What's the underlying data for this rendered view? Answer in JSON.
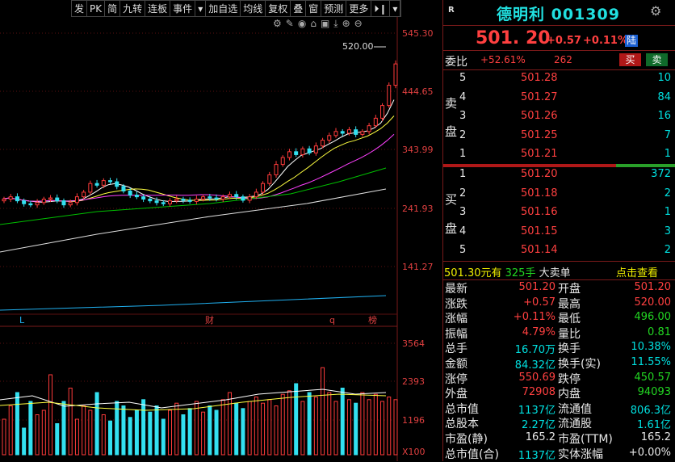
{
  "toolbar": {
    "items": [
      "发",
      "PK",
      "简",
      "九转",
      "连板",
      "事件",
      "▾",
      "加自选",
      "均线",
      "复权",
      "叠",
      "窗",
      "预测",
      "更多",
      "⏵❙",
      "▾"
    ]
  },
  "price_axis": [
    "545.30",
    "444.65",
    "343.99",
    "241.93",
    "141.27"
  ],
  "vol_axis": [
    "3564",
    "2393",
    "1196",
    "X100"
  ],
  "chart_labels": {
    "peak": "520.00",
    "marker_l": "L",
    "marker_cai": "财",
    "marker_q": "q",
    "marker_bang": "榜"
  },
  "stock": {
    "logo": "R",
    "name": "德明利",
    "code": "001309",
    "price": "501. 20",
    "change": "+0.57",
    "pct": "+0.11%",
    "exchange": "陆"
  },
  "weibi": {
    "label": "委比",
    "pct": "+52.61%",
    "diff": "262",
    "buy_btn": "买",
    "sell_btn": "卖"
  },
  "sell_label": [
    "卖",
    "盘"
  ],
  "buy_label": [
    "买",
    "盘"
  ],
  "asks": [
    {
      "lvl": "5",
      "price": "501.28",
      "vol": "10"
    },
    {
      "lvl": "4",
      "price": "501.27",
      "vol": "84"
    },
    {
      "lvl": "3",
      "price": "501.26",
      "vol": "16"
    },
    {
      "lvl": "2",
      "price": "501.25",
      "vol": "7"
    },
    {
      "lvl": "1",
      "price": "501.21",
      "vol": "1"
    }
  ],
  "bids": [
    {
      "lvl": "1",
      "price": "501.20",
      "vol": "372"
    },
    {
      "lvl": "2",
      "price": "501.18",
      "vol": "2"
    },
    {
      "lvl": "3",
      "price": "501.16",
      "vol": "1"
    },
    {
      "lvl": "4",
      "price": "501.15",
      "vol": "3"
    },
    {
      "lvl": "5",
      "price": "501.14",
      "vol": "2"
    }
  ],
  "bigorder": {
    "price": "501.30元有",
    "vol": "325手",
    "label": "大卖单",
    "link": "点击查看"
  },
  "stats": [
    {
      "l1": "最新",
      "v1": "501.20",
      "l2": "开盘",
      "v2": "501.20",
      "c1": "red",
      "c2": "red"
    },
    {
      "l1": "涨跌",
      "v1": "+0.57",
      "l2": "最高",
      "v2": "520.00",
      "c1": "red",
      "c2": "red"
    },
    {
      "l1": "涨幅",
      "v1": "+0.11%",
      "l2": "最低",
      "v2": "496.00",
      "c1": "red",
      "c2": "green"
    },
    {
      "l1": "振幅",
      "v1": "4.79%",
      "l2": "量比",
      "v2": "0.81",
      "c1": "red",
      "c2": "green"
    },
    {
      "l1": "总手",
      "v1": "16.70万",
      "l2": "换手",
      "v2": "10.38%",
      "c1": "cyan",
      "c2": "cyan"
    },
    {
      "l1": "金额",
      "v1": "84.32亿",
      "l2": "换手(实)",
      "v2": "11.55%",
      "c1": "cyan",
      "c2": "cyan"
    },
    {
      "l1": "涨停",
      "v1": "550.69",
      "l2": "跌停",
      "v2": "450.57",
      "c1": "red",
      "c2": "green"
    },
    {
      "l1": "外盘",
      "v1": "72908",
      "l2": "内盘",
      "v2": "94093",
      "c1": "red",
      "c2": "green"
    },
    {
      "l1": "总市值",
      "v1": "1137亿",
      "l2": "流通值",
      "v2": "806.3亿",
      "c1": "cyan",
      "c2": "cyan"
    },
    {
      "l1": "总股本",
      "v1": "2.27亿",
      "l2": "流通股",
      "v2": "1.61亿",
      "c1": "cyan",
      "c2": "cyan"
    },
    {
      "l1": "市盈(静)",
      "v1": "165.2",
      "l2": "市盈(TTM)",
      "v2": "165.2",
      "c1": "white",
      "c2": "white"
    },
    {
      "l1": "总市值(合)",
      "v1": "1137亿",
      "l2": "实体涨幅",
      "v2": "+0.00%",
      "c1": "cyan",
      "c2": "white"
    }
  ],
  "colors": {
    "up": "#ff3b3b",
    "down": "#33e0f0",
    "ma5": "#ffffff",
    "ma10": "#ffff40",
    "ma20": "#ff40ff",
    "ma30": "#00c000",
    "ma60": "#e0e0e0",
    "ma250": "#20b0f0",
    "border": "#7a1a1a"
  }
}
